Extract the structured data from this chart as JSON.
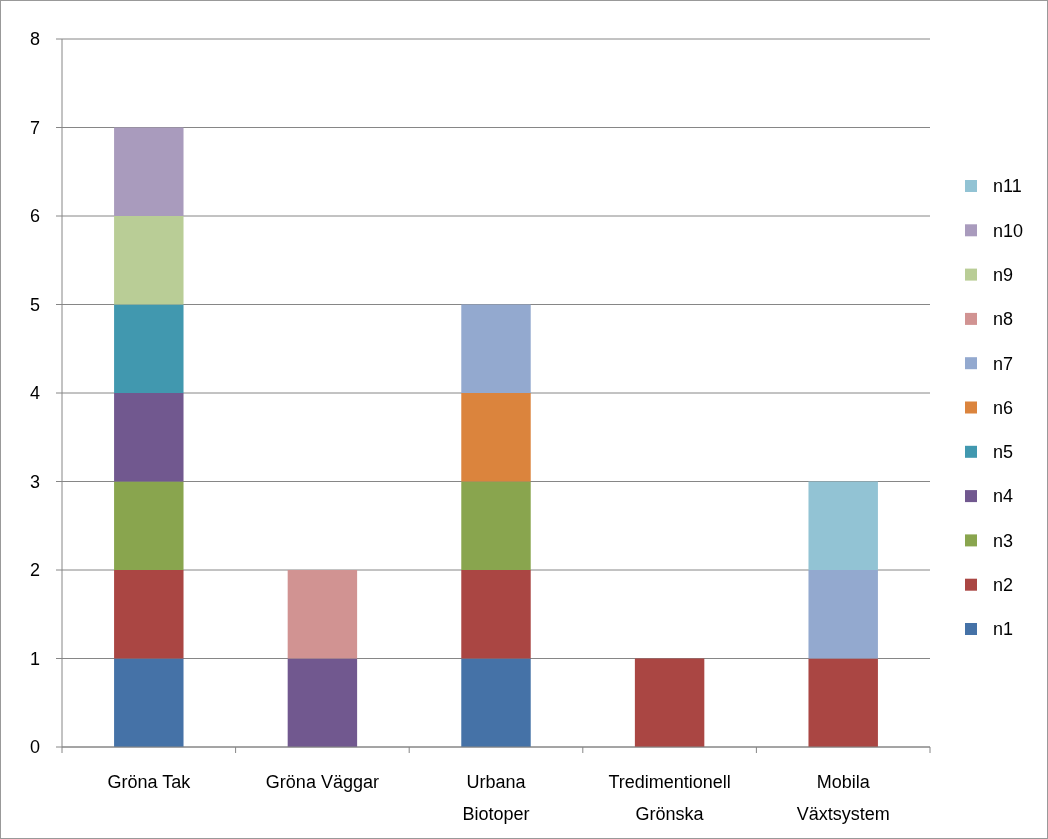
{
  "chart_data": {
    "type": "bar",
    "stacked": true,
    "categories": [
      "Gröna Tak",
      "Gröna Väggar",
      "Urbana Biotoper",
      "Tredimentionell Grönska",
      "Mobila Växtsystem"
    ],
    "series": [
      {
        "name": "n1",
        "color": "#4572a7",
        "values": [
          1,
          null,
          1,
          null,
          null
        ]
      },
      {
        "name": "n2",
        "color": "#aa4643",
        "values": [
          1,
          null,
          1,
          1,
          1
        ]
      },
      {
        "name": "n3",
        "color": "#89a54e",
        "values": [
          1,
          null,
          1,
          null,
          null
        ]
      },
      {
        "name": "n4",
        "color": "#71588f",
        "values": [
          1,
          1,
          null,
          null,
          null
        ]
      },
      {
        "name": "n5",
        "color": "#4198af",
        "values": [
          1,
          null,
          null,
          null,
          null
        ]
      },
      {
        "name": "n6",
        "color": "#db843d",
        "values": [
          null,
          null,
          1,
          null,
          null
        ]
      },
      {
        "name": "n7",
        "color": "#93a9cf",
        "values": [
          null,
          null,
          1,
          null,
          1
        ]
      },
      {
        "name": "n8",
        "color": "#d19392",
        "values": [
          null,
          1,
          null,
          null,
          null
        ]
      },
      {
        "name": "n9",
        "color": "#b9cd96",
        "values": [
          1,
          null,
          null,
          null,
          null
        ]
      },
      {
        "name": "n10",
        "color": "#a99bbd",
        "values": [
          1,
          null,
          null,
          null,
          null
        ]
      },
      {
        "name": "n11",
        "color": "#92c3d4",
        "values": [
          null,
          null,
          null,
          null,
          1
        ]
      }
    ],
    "ylim": [
      0,
      8
    ],
    "yticks": [
      0,
      1,
      2,
      3,
      4,
      5,
      6,
      7,
      8
    ],
    "grid": "y",
    "legend": "right"
  }
}
